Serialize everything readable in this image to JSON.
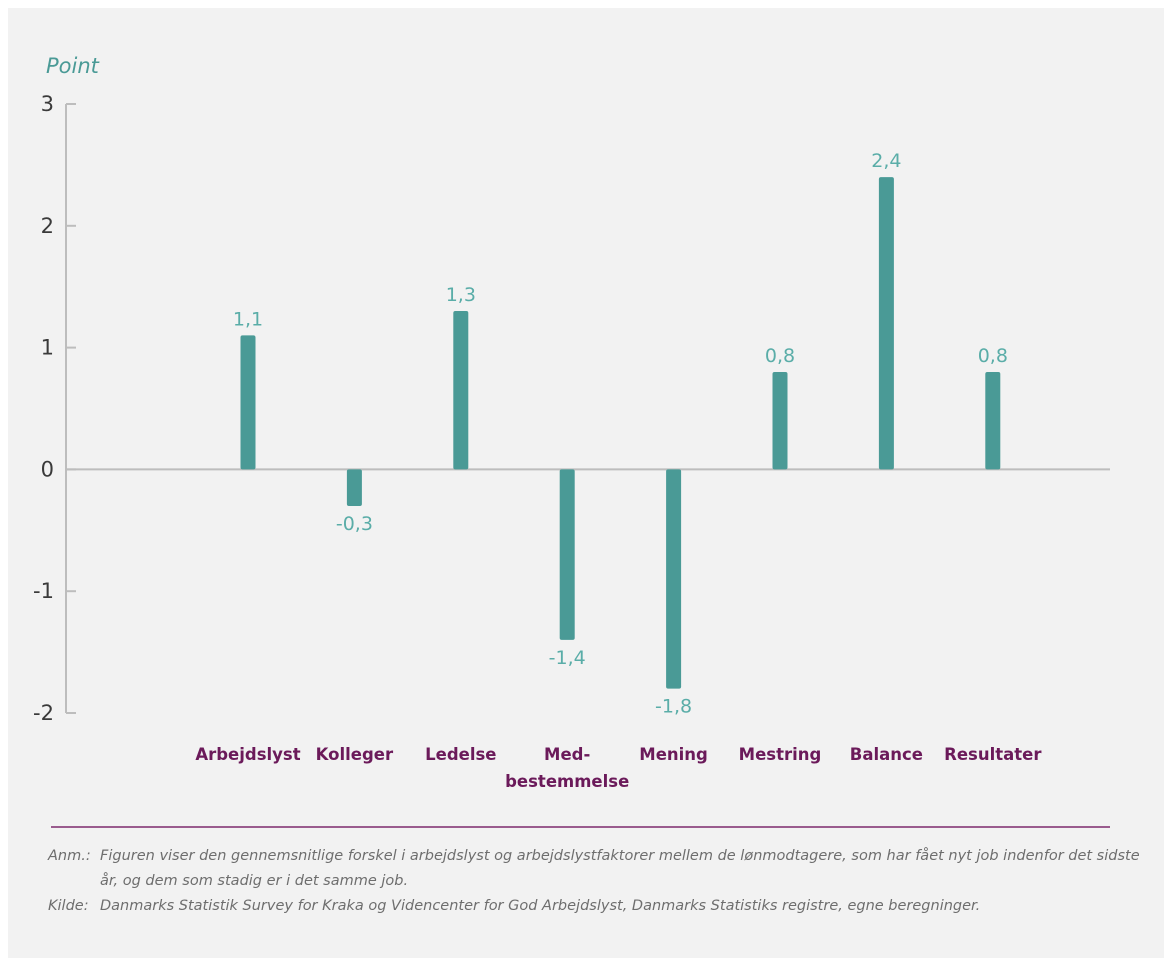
{
  "colors": {
    "bar": "#4a9a96",
    "value_label": "#5aada8",
    "category": "#6b1a5a",
    "axis": "#bdbdbd",
    "unit": "#4a9a96",
    "divider": "#7d2a6c"
  },
  "chart_data": {
    "type": "bar",
    "ylabel": "Point",
    "ylim": [
      -2,
      3
    ],
    "yticks": [
      3,
      2,
      1,
      0,
      -1,
      -2
    ],
    "categories": [
      [
        "Arbejdslyst"
      ],
      [
        "Kolleger"
      ],
      [
        "Ledelse"
      ],
      [
        "Med-",
        "bestemmelse"
      ],
      [
        "Mening"
      ],
      [
        "Mestring"
      ],
      [
        "Balance"
      ],
      [
        "Resultater"
      ]
    ],
    "values": [
      1.1,
      -0.3,
      1.3,
      -1.4,
      -1.8,
      0.8,
      2.4,
      0.8
    ],
    "value_labels": [
      "1,1",
      "-0,3",
      "1,3",
      "-1,4",
      "-1,8",
      "0,8",
      "2,4",
      "0,8"
    ],
    "grid": false
  },
  "notes": {
    "anm_tag": "Anm.:",
    "anm_text": "Figuren viser den gennemsnitlige forskel i arbejdslyst og arbejdslystfaktorer mellem de lønmodtagere, som har fået nyt job indenfor det sidste år, og dem som stadig er i det samme job.",
    "kilde_tag": "Kilde:",
    "kilde_text": "Danmarks Statistik Survey for Kraka og Videncenter for God Arbejdslyst, Danmarks Statistiks registre, egne beregninger."
  }
}
